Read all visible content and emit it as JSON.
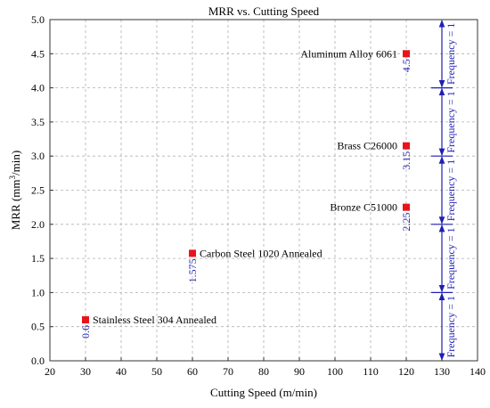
{
  "chart_data": {
    "type": "scatter",
    "title": "MRR vs. Cutting Speed",
    "xlabel": "Cutting Speed (m/min)",
    "ylabel_main": "MRR (mm",
    "ylabel_sup": "3",
    "ylabel_tail": "/min)",
    "xlim": [
      20,
      140
    ],
    "ylim": [
      0,
      5
    ],
    "xticks": [
      "20",
      "30",
      "40",
      "50",
      "60",
      "70",
      "80",
      "90",
      "100",
      "110",
      "120",
      "130",
      "140"
    ],
    "yticks": [
      "0.0",
      "0.5",
      "1.0",
      "1.5",
      "2.0",
      "2.5",
      "3.0",
      "3.5",
      "4.0",
      "4.5",
      "5.0"
    ],
    "grid": true,
    "colors": {
      "marker": "#e8141b",
      "annotation": "#1f1fb4",
      "grid": "#b0b0b0"
    },
    "points": [
      {
        "x": 30,
        "y": 0.6,
        "name": "Stainless Steel 304 Annealed",
        "value_label": "0.6"
      },
      {
        "x": 60,
        "y": 1.575,
        "name": "Carbon Steel 1020 Annealed",
        "value_label": "1.575"
      },
      {
        "x": 120,
        "y": 2.25,
        "name": "Bronze C51000",
        "value_label": "2.25"
      },
      {
        "x": 120,
        "y": 3.15,
        "name": "Brass C26000",
        "value_label": "3.15"
      },
      {
        "x": 120,
        "y": 4.5,
        "name": "Aluminum Alloy 6061",
        "value_label": "4.5"
      }
    ],
    "frequency_axis": {
      "x": 130,
      "boundaries": [
        0,
        1,
        2,
        3,
        4,
        5
      ],
      "segment_labels": [
        "Frequency = 1",
        "Frequency = 1",
        "Frequency = 1",
        "Frequency = 1",
        "Frequency = 1"
      ]
    }
  }
}
